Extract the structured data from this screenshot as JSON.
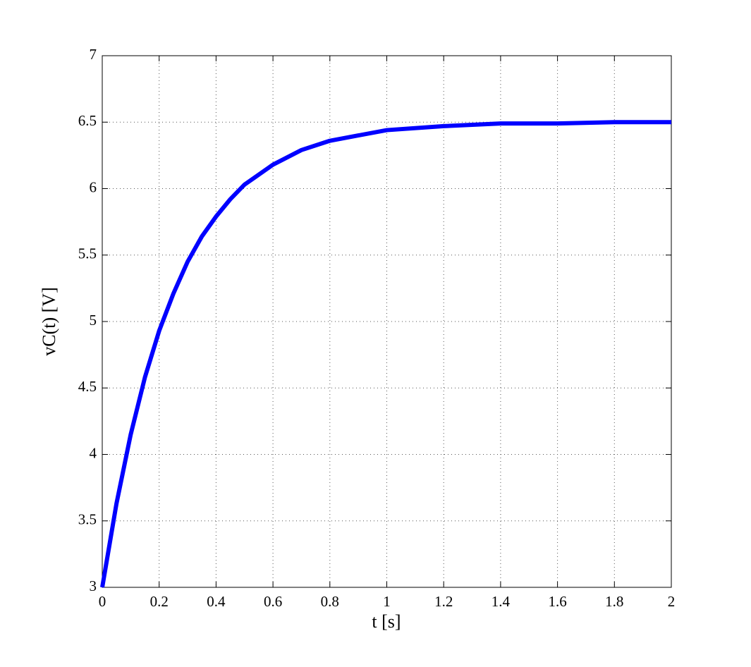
{
  "chart_data": {
    "type": "line",
    "xlabel": "t [s]",
    "ylabel": "vC(t) [V]",
    "x": [
      0,
      0.05,
      0.1,
      0.15,
      0.2,
      0.25,
      0.3,
      0.35,
      0.4,
      0.45,
      0.5,
      0.6,
      0.7,
      0.8,
      0.9,
      1.0,
      1.2,
      1.4,
      1.6,
      1.8,
      2.0
    ],
    "series": [
      {
        "color": "#0000ff",
        "values": [
          3.0,
          3.63,
          4.15,
          4.58,
          4.93,
          5.21,
          5.45,
          5.64,
          5.79,
          5.92,
          6.03,
          6.18,
          6.29,
          6.36,
          6.4,
          6.44,
          6.47,
          6.49,
          6.49,
          6.5,
          6.5
        ]
      }
    ],
    "xlim": [
      0,
      2
    ],
    "xticks": [
      0,
      0.2,
      0.4,
      0.6,
      0.8,
      1,
      1.2,
      1.4,
      1.6,
      1.8,
      2
    ],
    "ylim": [
      3,
      7
    ],
    "yticks": [
      3,
      3.5,
      4,
      4.5,
      5,
      5.5,
      6,
      6.5,
      7
    ],
    "grid": true
  }
}
